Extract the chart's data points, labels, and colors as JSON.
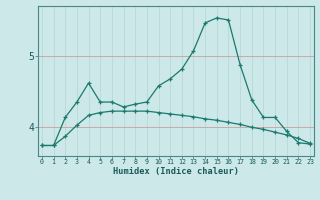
{
  "xlabel": "Humidex (Indice chaleur)",
  "bg_color": "#cce8e8",
  "line_color": "#1a7a6e",
  "grid_color_v": "#b8d8d8",
  "grid_color_h": "#c8a0a0",
  "x_ticks": [
    0,
    1,
    2,
    3,
    4,
    5,
    6,
    7,
    8,
    9,
    10,
    11,
    12,
    13,
    14,
    15,
    16,
    17,
    18,
    19,
    20,
    21,
    22,
    23
  ],
  "y_ticks": [
    4,
    5
  ],
  "ylim": [
    3.58,
    5.72
  ],
  "xlim": [
    -0.3,
    23.3
  ],
  "line1_x": [
    0,
    1,
    2,
    3,
    4,
    5,
    6,
    7,
    8,
    9,
    10,
    11,
    12,
    13,
    14,
    15,
    16,
    17,
    18,
    19,
    20,
    21,
    22,
    23
  ],
  "line1_y": [
    3.73,
    3.73,
    4.13,
    4.35,
    4.62,
    4.35,
    4.35,
    4.28,
    4.32,
    4.35,
    4.58,
    4.68,
    4.82,
    5.08,
    5.48,
    5.55,
    5.52,
    4.88,
    4.38,
    4.13,
    4.13,
    3.93,
    3.77,
    3.75
  ],
  "line2_x": [
    0,
    1,
    2,
    3,
    4,
    5,
    6,
    7,
    8,
    9,
    10,
    11,
    12,
    13,
    14,
    15,
    16,
    17,
    18,
    19,
    20,
    21,
    22,
    23
  ],
  "line2_y": [
    3.73,
    3.73,
    3.86,
    4.02,
    4.16,
    4.2,
    4.22,
    4.22,
    4.22,
    4.22,
    4.2,
    4.18,
    4.16,
    4.14,
    4.11,
    4.09,
    4.06,
    4.03,
    3.99,
    3.96,
    3.92,
    3.88,
    3.83,
    3.76
  ]
}
